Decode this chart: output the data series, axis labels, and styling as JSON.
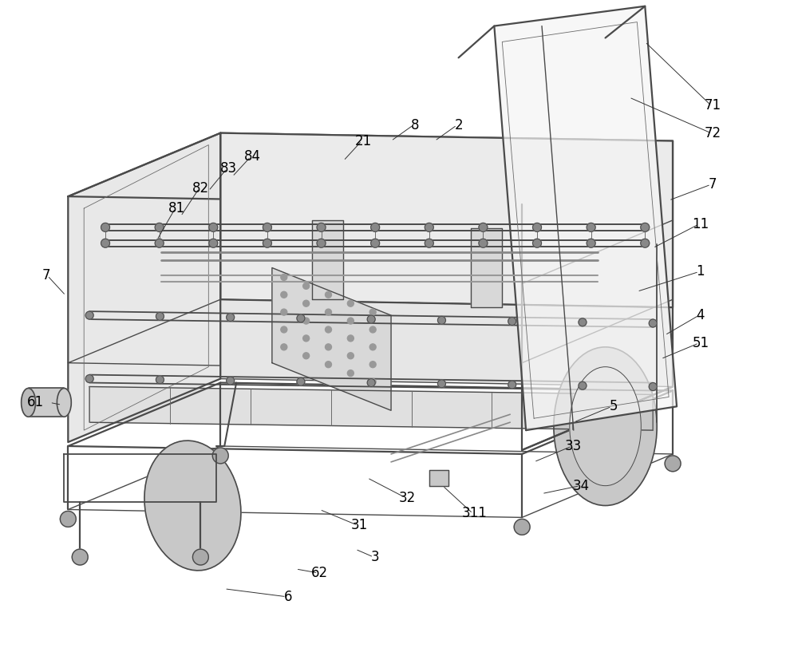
{
  "bg_color": "#ffffff",
  "lc": "#4a4a4a",
  "lc_thin": "#6a6a6a",
  "fill_left": "#e8e8e8",
  "fill_top": "#f0f0f0",
  "fill_inner": "#ebebeb",
  "fill_bottom": "#e0e0e0",
  "fill_right_panel": "#f5f5f5",
  "fill_guard": "#f8f8f8",
  "fill_drum": "#c8c8c8",
  "fill_box": "#d8d8d8",
  "figsize": [
    10.0,
    8.22
  ],
  "dpi": 100,
  "font_size": 12,
  "lw_thick": 1.6,
  "lw_main": 1.0,
  "lw_thin": 0.6
}
